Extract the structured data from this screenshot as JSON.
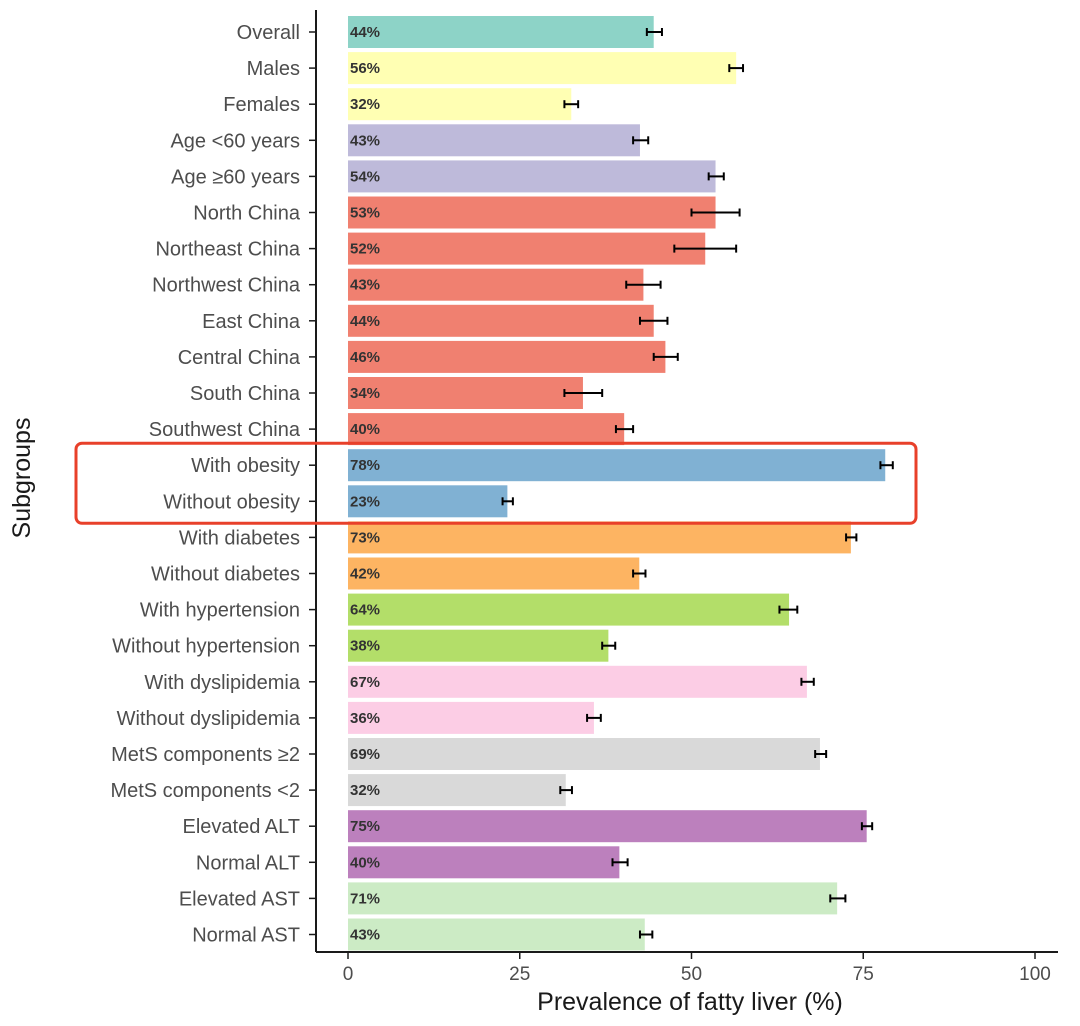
{
  "chart_data": {
    "type": "bar",
    "orientation": "horizontal",
    "title": "",
    "xlabel": "Prevalence of fatty liver (%)",
    "ylabel": "Subgroups",
    "xlim": [
      0,
      100
    ],
    "x_ticks": [
      0,
      25,
      50,
      75,
      100
    ],
    "grid": false,
    "legend": "none",
    "highlight": {
      "categories": [
        "With obesity",
        "Without obesity"
      ],
      "color": "#e8402a"
    },
    "bars": [
      {
        "category": "Overall",
        "value": 44.5,
        "label": "44%",
        "err_low": 43.5,
        "err_high": 45.7,
        "color": "#8dd3c7"
      },
      {
        "category": "Males",
        "value": 56.5,
        "label": "56%",
        "err_low": 55.5,
        "err_high": 57.5,
        "color": "#ffffb3"
      },
      {
        "category": "Females",
        "value": 32.5,
        "label": "32%",
        "err_low": 31.5,
        "err_high": 33.5,
        "color": "#ffffb3"
      },
      {
        "category": "Age <60 years",
        "value": 42.5,
        "label": "43%",
        "err_low": 41.5,
        "err_high": 43.7,
        "color": "#bebada"
      },
      {
        "category": "Age ≥60 years",
        "value": 53.5,
        "label": "54%",
        "err_low": 52.5,
        "err_high": 54.7,
        "color": "#bebada"
      },
      {
        "category": "North China",
        "value": 53.5,
        "label": "53%",
        "err_low": 50,
        "err_high": 57,
        "color": "#f08070"
      },
      {
        "category": "Northeast China",
        "value": 52,
        "label": "52%",
        "err_low": 47.5,
        "err_high": 56.5,
        "color": "#f08070"
      },
      {
        "category": "Northwest China",
        "value": 43,
        "label": "43%",
        "err_low": 40.5,
        "err_high": 45.5,
        "color": "#f08070"
      },
      {
        "category": "East China",
        "value": 44.5,
        "label": "44%",
        "err_low": 42.5,
        "err_high": 46.5,
        "color": "#f08070"
      },
      {
        "category": "Central China",
        "value": 46.2,
        "label": "46%",
        "err_low": 44.5,
        "err_high": 48,
        "color": "#f08070"
      },
      {
        "category": "South China",
        "value": 34.2,
        "label": "34%",
        "err_low": 31.5,
        "err_high": 37,
        "color": "#f08070"
      },
      {
        "category": "Southwest China",
        "value": 40.2,
        "label": "40%",
        "err_low": 39,
        "err_high": 41.5,
        "color": "#f08070"
      },
      {
        "category": "With obesity",
        "value": 78.2,
        "label": "78%",
        "err_low": 77.5,
        "err_high": 79.3,
        "color": "#80b1d3"
      },
      {
        "category": "Without obesity",
        "value": 23.2,
        "label": "23%",
        "err_low": 22.5,
        "err_high": 24,
        "color": "#80b1d3"
      },
      {
        "category": "With diabetes",
        "value": 73.2,
        "label": "73%",
        "err_low": 72.5,
        "err_high": 74,
        "color": "#fdb462"
      },
      {
        "category": "Without diabetes",
        "value": 42.4,
        "label": "42%",
        "err_low": 41.5,
        "err_high": 43.3,
        "color": "#fdb462"
      },
      {
        "category": "With hypertension",
        "value": 64.2,
        "label": "64%",
        "err_low": 62.8,
        "err_high": 65.4,
        "color": "#b3de69"
      },
      {
        "category": "Without hypertension",
        "value": 37.9,
        "label": "38%",
        "err_low": 37,
        "err_high": 38.9,
        "color": "#b3de69"
      },
      {
        "category": "With dyslipidemia",
        "value": 66.8,
        "label": "67%",
        "err_low": 66,
        "err_high": 67.8,
        "color": "#fccde5"
      },
      {
        "category": "Without dyslipidemia",
        "value": 35.8,
        "label": "36%",
        "err_low": 34.8,
        "err_high": 36.8,
        "color": "#fccde5"
      },
      {
        "category": "MetS components ≥2",
        "value": 68.7,
        "label": "69%",
        "err_low": 68,
        "err_high": 69.6,
        "color": "#d9d9d9"
      },
      {
        "category": "MetS components <2",
        "value": 31.7,
        "label": "32%",
        "err_low": 30.9,
        "err_high": 32.6,
        "color": "#d9d9d9"
      },
      {
        "category": "Elevated ALT",
        "value": 75.5,
        "label": "75%",
        "err_low": 74.8,
        "err_high": 76.3,
        "color": "#bc80bd"
      },
      {
        "category": "Normal ALT",
        "value": 39.5,
        "label": "40%",
        "err_low": 38.5,
        "err_high": 40.7,
        "color": "#bc80bd"
      },
      {
        "category": "Elevated AST",
        "value": 71.2,
        "label": "71%",
        "err_low": 70.2,
        "err_high": 72.4,
        "color": "#ccebc5"
      },
      {
        "category": "Normal AST",
        "value": 43.2,
        "label": "43%",
        "err_low": 42.5,
        "err_high": 44.3,
        "color": "#ccebc5"
      }
    ]
  }
}
